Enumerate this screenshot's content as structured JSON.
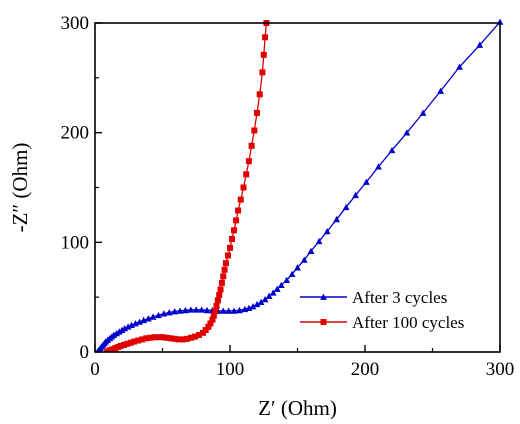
{
  "chart_data": {
    "type": "scatter",
    "xlabel": "Z′ (Ohm)",
    "ylabel": "-Z″ (Ohm)",
    "xlim": [
      0,
      300
    ],
    "ylim": [
      0,
      300
    ],
    "xticks": [
      "0",
      "100",
      "200",
      "300"
    ],
    "yticks": [
      "0",
      "100",
      "200",
      "300"
    ],
    "grid": false,
    "legend_position": "bottom-right",
    "series": [
      {
        "name": "After 3 cycles",
        "color": "#0000cc",
        "marker": "triangle",
        "points": [
          [
            2,
            0.5
          ],
          [
            3,
            2
          ],
          [
            4,
            3.5
          ],
          [
            5,
            5
          ],
          [
            6,
            6.5
          ],
          [
            7,
            8
          ],
          [
            8,
            9.5
          ],
          [
            9.5,
            11
          ],
          [
            11,
            12.5
          ],
          [
            12.5,
            14
          ],
          [
            14,
            15.5
          ],
          [
            16,
            17
          ],
          [
            18,
            18.5
          ],
          [
            20,
            20
          ],
          [
            22,
            21.5
          ],
          [
            24.5,
            23
          ],
          [
            27,
            24.5
          ],
          [
            30,
            26
          ],
          [
            33,
            27.5
          ],
          [
            36,
            29
          ],
          [
            39.5,
            30.5
          ],
          [
            43,
            32
          ],
          [
            47,
            33.5
          ],
          [
            51,
            35
          ],
          [
            55,
            36
          ],
          [
            59,
            37
          ],
          [
            63,
            37.5
          ],
          [
            67,
            38
          ],
          [
            71,
            38.5
          ],
          [
            75,
            38.5
          ],
          [
            79,
            38.5
          ],
          [
            83,
            38
          ],
          [
            87,
            38
          ],
          [
            91,
            37.5
          ],
          [
            95,
            37.5
          ],
          [
            99,
            37.5
          ],
          [
            103,
            37.5
          ],
          [
            107,
            38
          ],
          [
            111,
            39
          ],
          [
            114,
            40
          ],
          [
            117,
            41.5
          ],
          [
            120,
            43.5
          ],
          [
            123,
            45.5
          ],
          [
            126,
            48
          ],
          [
            129,
            51
          ],
          [
            132,
            54
          ],
          [
            135,
            57.5
          ],
          [
            138,
            61
          ],
          [
            142,
            65.5
          ],
          [
            146,
            71
          ],
          [
            150,
            77
          ],
          [
            155,
            84
          ],
          [
            160,
            92
          ],
          [
            166,
            101
          ],
          [
            172,
            110
          ],
          [
            179,
            121
          ],
          [
            186,
            132
          ],
          [
            193,
            143
          ],
          [
            201,
            155
          ],
          [
            210,
            169
          ],
          [
            220,
            184
          ],
          [
            231,
            200
          ],
          [
            243,
            218
          ],
          [
            256,
            238
          ],
          [
            270,
            260
          ],
          [
            285,
            280
          ],
          [
            300,
            301
          ]
        ]
      },
      {
        "name": "After 100 cycles",
        "color": "#e00000",
        "marker": "square",
        "points": [
          [
            9,
            0.5
          ],
          [
            11,
            1.5
          ],
          [
            13,
            2.5
          ],
          [
            15,
            3.5
          ],
          [
            17,
            4.5
          ],
          [
            19,
            5.5
          ],
          [
            21.5,
            6.5
          ],
          [
            24,
            7.5
          ],
          [
            26.5,
            8.5
          ],
          [
            29,
            9.5
          ],
          [
            32,
            10.5
          ],
          [
            35,
            11.5
          ],
          [
            38,
            12.5
          ],
          [
            41,
            13
          ],
          [
            44,
            13.5
          ],
          [
            47,
            13.5
          ],
          [
            50,
            13.5
          ],
          [
            53,
            13
          ],
          [
            56,
            12.5
          ],
          [
            59,
            12
          ],
          [
            62,
            11.5
          ],
          [
            65,
            11.5
          ],
          [
            68,
            12
          ],
          [
            71,
            13
          ],
          [
            74,
            14
          ],
          [
            77,
            15.5
          ],
          [
            80,
            17.5
          ],
          [
            82,
            20
          ],
          [
            84,
            23
          ],
          [
            85.5,
            26
          ],
          [
            87,
            29.5
          ],
          [
            88,
            33
          ],
          [
            89,
            37
          ],
          [
            90,
            42
          ],
          [
            91,
            47
          ],
          [
            92,
            52
          ],
          [
            93,
            57
          ],
          [
            94,
            63
          ],
          [
            95,
            69
          ],
          [
            96,
            75
          ],
          [
            97,
            81
          ],
          [
            98.5,
            88
          ],
          [
            100,
            95
          ],
          [
            101.5,
            103
          ],
          [
            103,
            111
          ],
          [
            104.5,
            120
          ],
          [
            106,
            129
          ],
          [
            108,
            139
          ],
          [
            110,
            150
          ],
          [
            112,
            162
          ],
          [
            114,
            174
          ],
          [
            116,
            188
          ],
          [
            118,
            202
          ],
          [
            120,
            218
          ],
          [
            122,
            235
          ],
          [
            124,
            255
          ],
          [
            125,
            271
          ],
          [
            126,
            287
          ],
          [
            127,
            300
          ]
        ]
      }
    ]
  }
}
